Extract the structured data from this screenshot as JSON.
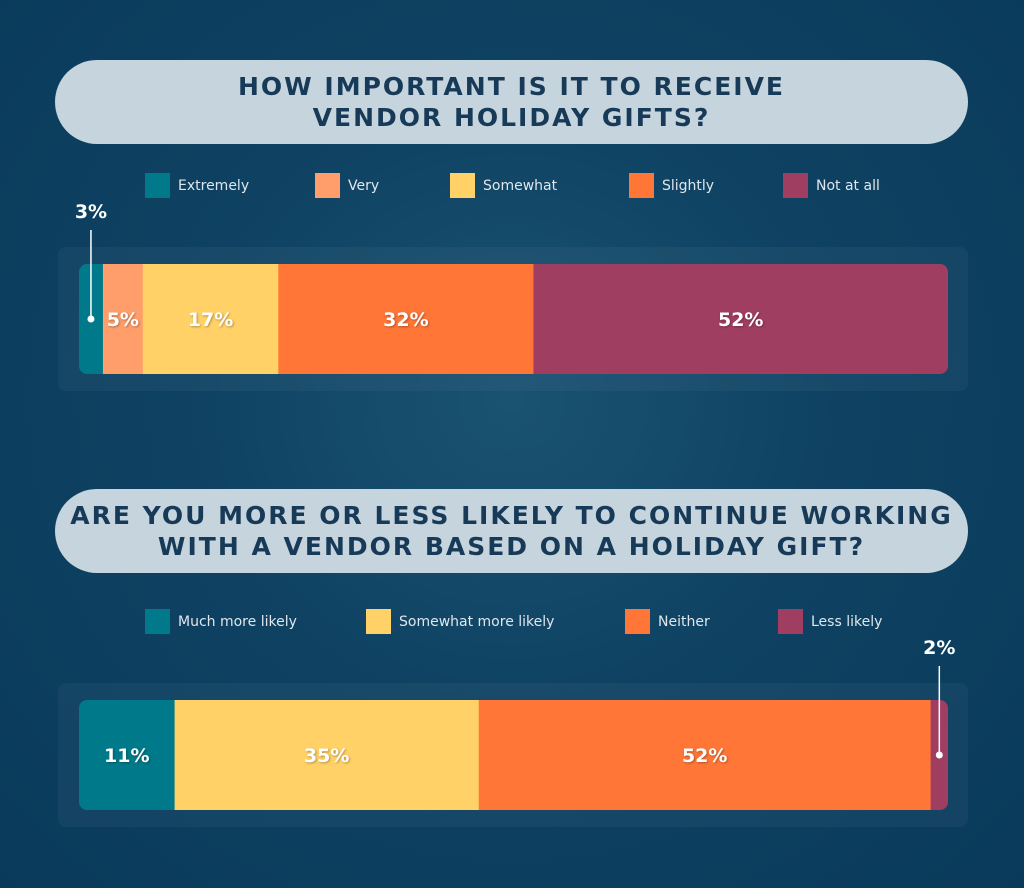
{
  "chart_data": [
    {
      "type": "bar",
      "orientation": "horizontal-stacked",
      "title": "HOW IMPORTANT IS IT TO RECEIVE\nVENDOR HOLIDAY GIFTS?",
      "legend_placement": "top",
      "series": [
        {
          "name": "Extremely",
          "value": 3,
          "label": "3%",
          "color": "#007a8a"
        },
        {
          "name": "Very",
          "value": 5,
          "label": "5%",
          "color": "#ff9e6a"
        },
        {
          "name": "Somewhat",
          "value": 17,
          "label": "17%",
          "color": "#ffd166"
        },
        {
          "name": "Slightly",
          "value": 32,
          "label": "32%",
          "color": "#ff7637"
        },
        {
          "name": "Not at all",
          "value": 52,
          "label": "52%",
          "color": "#a03e62"
        }
      ]
    },
    {
      "type": "bar",
      "orientation": "horizontal-stacked",
      "title": "ARE YOU MORE OR LESS LIKELY TO CONTINUE WORKING\nWITH A VENDOR BASED ON A HOLIDAY GIFT?",
      "legend_placement": "top",
      "series": [
        {
          "name": "Much more likely",
          "value": 11,
          "label": "11%",
          "color": "#007a8a"
        },
        {
          "name": "Somewhat more likely",
          "value": 35,
          "label": "35%",
          "color": "#ffd166"
        },
        {
          "name": "Neither",
          "value": 52,
          "label": "52%",
          "color": "#ff7637"
        },
        {
          "name": "Less likely",
          "value": 2,
          "label": "2%",
          "color": "#a03e62"
        }
      ]
    }
  ],
  "colors": {
    "background": "#0f4262",
    "title_pill": "#c6d4dd",
    "title_text": "#163a57"
  }
}
